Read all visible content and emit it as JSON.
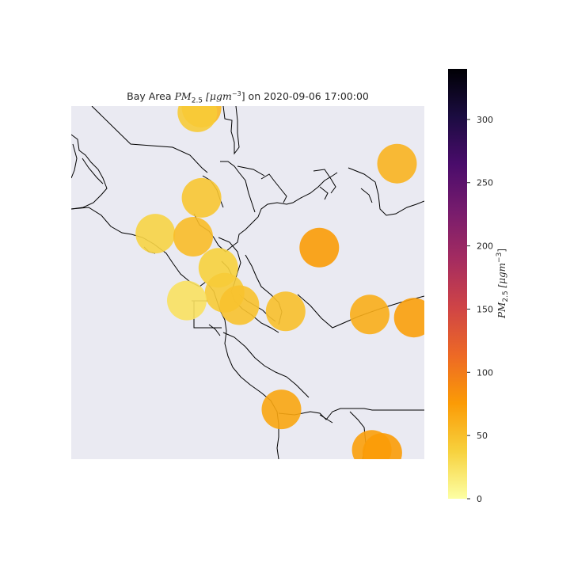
{
  "title": {
    "prefix": "Bay Area ",
    "symbol": "PM",
    "subscript": "2.5",
    "units_base": "[μgm",
    "units_exp": "−3",
    "units_close": "]",
    "suffix": " on 2020-09-06 17:00:00"
  },
  "colorbar": {
    "label": "PM2.5 [μgm−3]",
    "label_symbol": "PM",
    "label_subscript": "2.5",
    "label_units": "[μgm",
    "label_exp": "−3",
    "label_close": "]",
    "colormap": "inferno_r",
    "vmin": 0,
    "vmax": 340,
    "ticks": [
      0,
      50,
      100,
      150,
      200,
      250,
      300
    ],
    "colors": [
      "#fcffa4",
      "#f7d13d",
      "#fb9b06",
      "#ed6925",
      "#cf4446",
      "#a52c60",
      "#781c6d",
      "#4a0c6b",
      "#1b0c41",
      "#000004"
    ]
  },
  "map": {
    "background": "#eaeaf2",
    "coastline_color": "#000000"
  },
  "chart_data": {
    "type": "scatter",
    "title": "Bay Area PM2.5 [μgm−3] on 2020-09-06 17:00:00",
    "colorbar_label": "PM2.5 [μgm−3]",
    "color_range": [
      0,
      340
    ],
    "points": [
      {
        "lon": -122.38,
        "lat": 38.98,
        "pm25": 55
      },
      {
        "lon": -122.4,
        "lat": 38.95,
        "pm25": 42
      },
      {
        "lon": -121.45,
        "lat": 38.62,
        "pm25": 58
      },
      {
        "lon": -122.38,
        "lat": 38.4,
        "pm25": 45
      },
      {
        "lon": -122.6,
        "lat": 38.17,
        "pm25": 35
      },
      {
        "lon": -122.42,
        "lat": 38.15,
        "pm25": 52
      },
      {
        "lon": -121.82,
        "lat": 38.08,
        "pm25": 75
      },
      {
        "lon": -122.3,
        "lat": 37.95,
        "pm25": 38
      },
      {
        "lon": -122.27,
        "lat": 37.79,
        "pm25": 42
      },
      {
        "lon": -122.45,
        "lat": 37.74,
        "pm25": 25
      },
      {
        "lon": -122.2,
        "lat": 37.71,
        "pm25": 48
      },
      {
        "lon": -121.98,
        "lat": 37.67,
        "pm25": 50
      },
      {
        "lon": -121.58,
        "lat": 37.65,
        "pm25": 62
      },
      {
        "lon": -121.37,
        "lat": 37.63,
        "pm25": 72
      },
      {
        "lon": -122.0,
        "lat": 37.04,
        "pm25": 68
      },
      {
        "lon": -121.57,
        "lat": 36.78,
        "pm25": 72
      },
      {
        "lon": -121.52,
        "lat": 36.76,
        "pm25": 75
      }
    ]
  }
}
